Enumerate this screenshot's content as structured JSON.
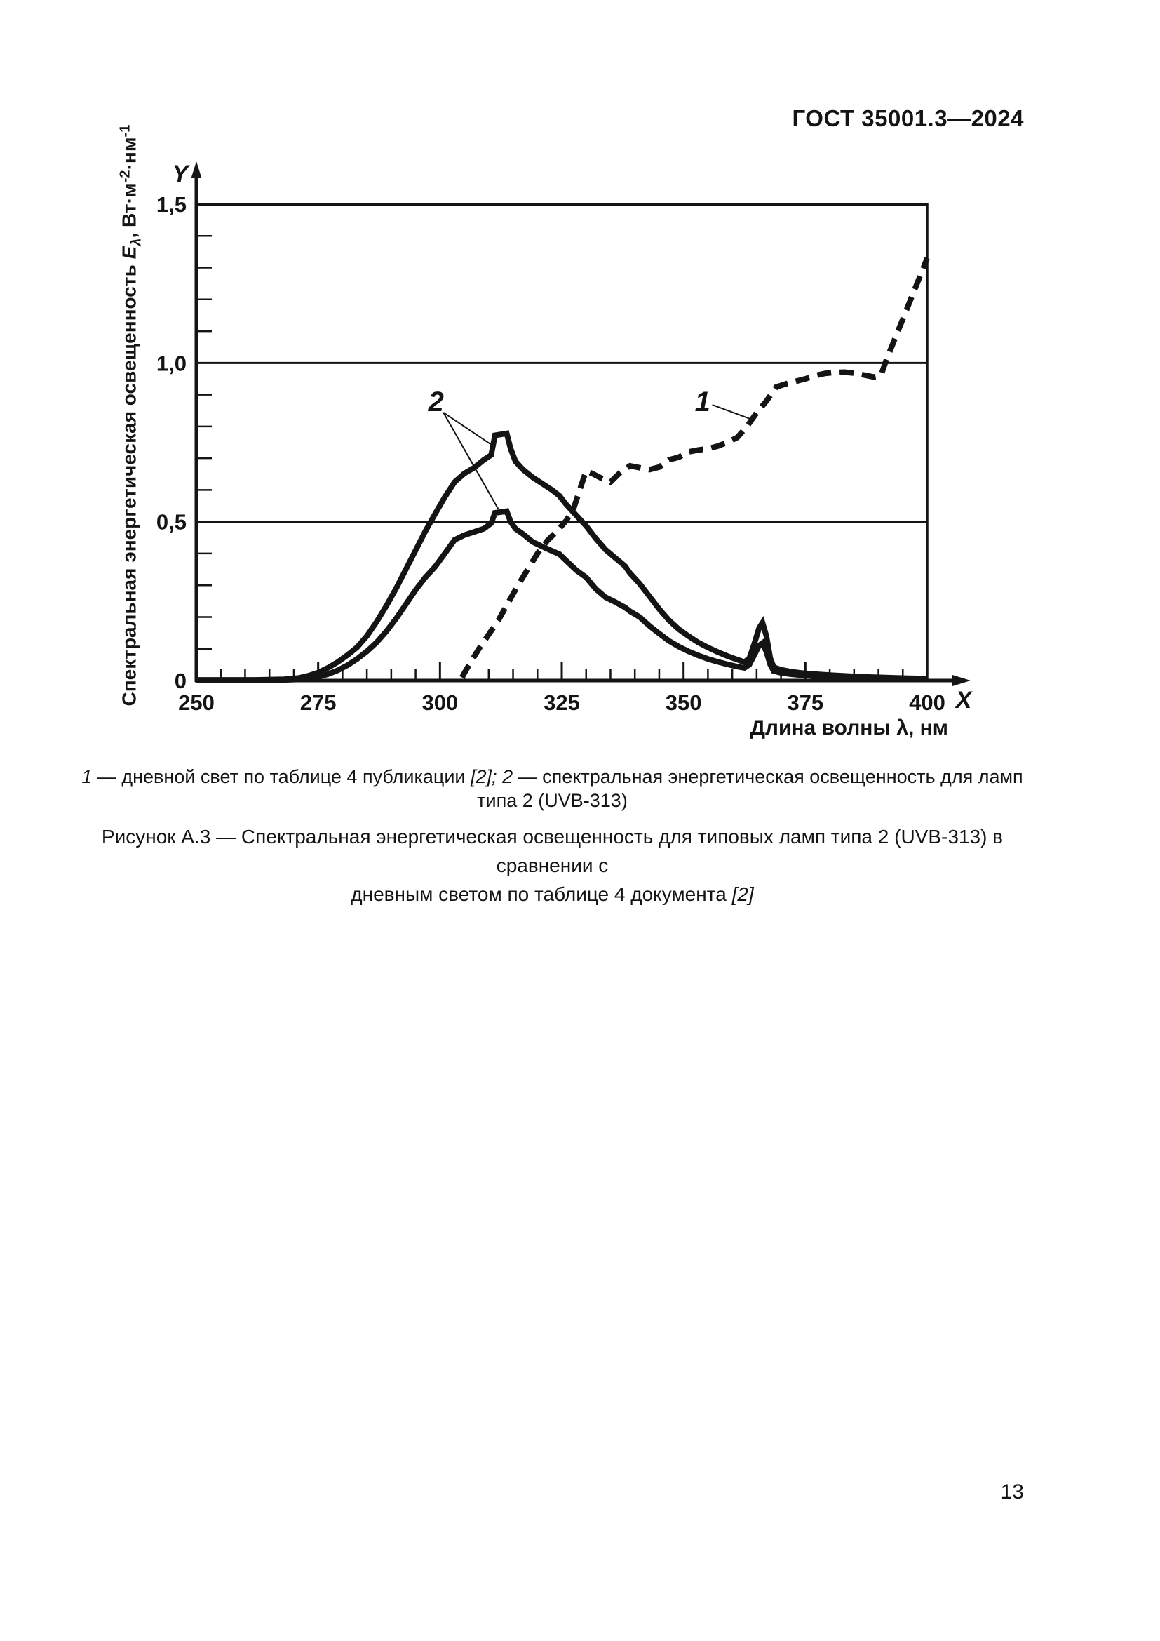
{
  "page": {
    "header": "ГОСТ 35001.3—2024",
    "page_number": "13"
  },
  "y_axis_label_parts": [
    {
      "text": "Спектральная энергетическая освещенность "
    },
    {
      "text": "E",
      "italic": true
    },
    {
      "text": "λ",
      "italic": true,
      "sub": true
    },
    {
      "text": ", Вт·м"
    },
    {
      "text": "-2",
      "sup": true
    },
    {
      "text": "·нм"
    },
    {
      "text": "-1",
      "sup": true
    }
  ],
  "legend_parts": [
    {
      "text": "1",
      "italic": true
    },
    {
      "text": " — дневной свет по таблице 4 публикации "
    },
    {
      "text": "[2];",
      "italic": true
    },
    {
      "text": " "
    },
    {
      "text": "2",
      "italic": true
    },
    {
      "text": " — спектральная энергетическая освещенность для ламп типа 2 (UVB-313)"
    }
  ],
  "figure_title": {
    "line1_parts": [
      {
        "text": "Рисунок А.3 — Спектральная энергетическая освещенность для типовых ламп типа 2 (UVB-313) в сравнении с"
      }
    ],
    "line2_parts": [
      {
        "text": "дневным светом по таблице 4 документа "
      },
      {
        "text": "[2]",
        "italic": true
      }
    ]
  },
  "chart_data": {
    "type": "line",
    "title": "",
    "xlabel": "Длина волны λ, нм",
    "ylabel": "Спектральная энергетическая освещенность Eλ, Вт·м⁻²·нм⁻¹",
    "axis_letter_x": "X",
    "axis_letter_y": "Y",
    "xlim": [
      250,
      400
    ],
    "ylim": [
      0,
      1.5
    ],
    "x_major_ticks": [
      250,
      275,
      300,
      325,
      350,
      375,
      400
    ],
    "x_major_tick_labels": [
      "250",
      "275",
      "300",
      "325",
      "350",
      "375",
      "400"
    ],
    "x_minor_tick_step": 5,
    "y_major_ticks": [
      0,
      0.5,
      1.0,
      1.5
    ],
    "y_major_tick_labels": [
      "0",
      "0,5",
      "1,0",
      "1,5"
    ],
    "y_minor_tick_step": 0.1,
    "y_gridlines": [
      0.5,
      1.0
    ],
    "grid": "horizontal-only",
    "legend_position": "below-as-caption",
    "line_color": "#141414",
    "series": [
      {
        "id": "curve-1-daylight",
        "name": "1 — дневной свет по таблице 4 публикации [2]",
        "style": "dashed",
        "points": [
          [
            304.5,
            0.01
          ],
          [
            306,
            0.05
          ],
          [
            308,
            0.1
          ],
          [
            310,
            0.145
          ],
          [
            312,
            0.19
          ],
          [
            314,
            0.245
          ],
          [
            316,
            0.3
          ],
          [
            318,
            0.35
          ],
          [
            320,
            0.4
          ],
          [
            322,
            0.44
          ],
          [
            324,
            0.47
          ],
          [
            326,
            0.505
          ],
          [
            327.5,
            0.545
          ],
          [
            329,
            0.615
          ],
          [
            330,
            0.66
          ],
          [
            331.5,
            0.65
          ],
          [
            333,
            0.638
          ],
          [
            335,
            0.625
          ],
          [
            337,
            0.655
          ],
          [
            339,
            0.676
          ],
          [
            341,
            0.67
          ],
          [
            343,
            0.664
          ],
          [
            345,
            0.672
          ],
          [
            347,
            0.695
          ],
          [
            349,
            0.703
          ],
          [
            351,
            0.72
          ],
          [
            353,
            0.726
          ],
          [
            355,
            0.73
          ],
          [
            357,
            0.738
          ],
          [
            359,
            0.75
          ],
          [
            361,
            0.765
          ],
          [
            363,
            0.8
          ],
          [
            365,
            0.843
          ],
          [
            367,
            0.88
          ],
          [
            369,
            0.924
          ],
          [
            371,
            0.934
          ],
          [
            373,
            0.942
          ],
          [
            375,
            0.95
          ],
          [
            377,
            0.96
          ],
          [
            379,
            0.967
          ],
          [
            381,
            0.97
          ],
          [
            383,
            0.971
          ],
          [
            385,
            0.968
          ],
          [
            387,
            0.962
          ],
          [
            389,
            0.956
          ],
          [
            390.5,
            0.96
          ],
          [
            391.5,
            1.005
          ],
          [
            393,
            1.062
          ],
          [
            395,
            1.138
          ],
          [
            397,
            1.215
          ],
          [
            399,
            1.291
          ],
          [
            400,
            1.33
          ]
        ]
      },
      {
        "id": "curve-2-upper",
        "name": "2 — спектральная энергетическая освещенность для ламп типа 2 (UVB-313), верхняя кривая",
        "style": "solid",
        "points": [
          [
            250,
            0.002
          ],
          [
            262,
            0.002
          ],
          [
            268,
            0.004
          ],
          [
            271,
            0.008
          ],
          [
            273,
            0.015
          ],
          [
            275,
            0.025
          ],
          [
            277,
            0.04
          ],
          [
            279,
            0.058
          ],
          [
            281,
            0.08
          ],
          [
            283,
            0.105
          ],
          [
            285,
            0.14
          ],
          [
            287,
            0.185
          ],
          [
            289,
            0.235
          ],
          [
            291,
            0.29
          ],
          [
            293,
            0.35
          ],
          [
            295,
            0.41
          ],
          [
            297,
            0.47
          ],
          [
            299,
            0.525
          ],
          [
            301,
            0.578
          ],
          [
            303,
            0.625
          ],
          [
            305,
            0.652
          ],
          [
            307,
            0.67
          ],
          [
            309,
            0.695
          ],
          [
            310.5,
            0.71
          ],
          [
            311.3,
            0.772
          ],
          [
            313.7,
            0.778
          ],
          [
            314.5,
            0.73
          ],
          [
            315.5,
            0.69
          ],
          [
            317,
            0.665
          ],
          [
            319,
            0.64
          ],
          [
            321,
            0.62
          ],
          [
            323,
            0.6
          ],
          [
            324.5,
            0.582
          ],
          [
            326,
            0.553
          ],
          [
            328,
            0.52
          ],
          [
            330,
            0.487
          ],
          [
            332,
            0.447
          ],
          [
            334,
            0.412
          ],
          [
            336,
            0.386
          ],
          [
            338,
            0.36
          ],
          [
            339,
            0.338
          ],
          [
            341,
            0.305
          ],
          [
            343,
            0.265
          ],
          [
            345,
            0.225
          ],
          [
            347,
            0.19
          ],
          [
            349,
            0.162
          ],
          [
            351,
            0.14
          ],
          [
            353,
            0.12
          ],
          [
            355,
            0.104
          ],
          [
            357,
            0.09
          ],
          [
            359,
            0.077
          ],
          [
            361,
            0.066
          ],
          [
            362.5,
            0.058
          ],
          [
            363.5,
            0.07
          ],
          [
            364.5,
            0.115
          ],
          [
            365.5,
            0.165
          ],
          [
            366.2,
            0.182
          ],
          [
            367,
            0.14
          ],
          [
            367.8,
            0.07
          ],
          [
            368.5,
            0.042
          ],
          [
            370,
            0.034
          ],
          [
            372,
            0.028
          ],
          [
            374,
            0.024
          ],
          [
            377,
            0.02
          ],
          [
            380,
            0.017
          ],
          [
            384,
            0.014
          ],
          [
            388,
            0.011
          ],
          [
            392,
            0.009
          ],
          [
            396,
            0.007
          ],
          [
            400,
            0.006
          ]
        ]
      },
      {
        "id": "curve-2-lower",
        "name": "2 — спектральная энергетическая освещенность для ламп типа 2 (UVB-313), нижняя кривая",
        "style": "solid",
        "points": [
          [
            250,
            0.001
          ],
          [
            266,
            0.001
          ],
          [
            270,
            0.003
          ],
          [
            273,
            0.007
          ],
          [
            275,
            0.012
          ],
          [
            277,
            0.02
          ],
          [
            279,
            0.032
          ],
          [
            281,
            0.048
          ],
          [
            283,
            0.068
          ],
          [
            285,
            0.092
          ],
          [
            287,
            0.12
          ],
          [
            289,
            0.155
          ],
          [
            291,
            0.195
          ],
          [
            293,
            0.24
          ],
          [
            295,
            0.285
          ],
          [
            297,
            0.325
          ],
          [
            299,
            0.358
          ],
          [
            301,
            0.4
          ],
          [
            303,
            0.443
          ],
          [
            305,
            0.458
          ],
          [
            307,
            0.468
          ],
          [
            309,
            0.478
          ],
          [
            310.5,
            0.495
          ],
          [
            311.3,
            0.528
          ],
          [
            313.7,
            0.533
          ],
          [
            314.5,
            0.5
          ],
          [
            315.5,
            0.478
          ],
          [
            317,
            0.462
          ],
          [
            319,
            0.437
          ],
          [
            321,
            0.422
          ],
          [
            323,
            0.408
          ],
          [
            324.5,
            0.398
          ],
          [
            326,
            0.376
          ],
          [
            328,
            0.347
          ],
          [
            330,
            0.325
          ],
          [
            332,
            0.288
          ],
          [
            334,
            0.262
          ],
          [
            336,
            0.247
          ],
          [
            338,
            0.23
          ],
          [
            339,
            0.218
          ],
          [
            341,
            0.2
          ],
          [
            343,
            0.172
          ],
          [
            345,
            0.148
          ],
          [
            347,
            0.125
          ],
          [
            349,
            0.107
          ],
          [
            351,
            0.092
          ],
          [
            353,
            0.079
          ],
          [
            355,
            0.068
          ],
          [
            357,
            0.059
          ],
          [
            359,
            0.051
          ],
          [
            361,
            0.044
          ],
          [
            362.5,
            0.04
          ],
          [
            363.5,
            0.05
          ],
          [
            364.5,
            0.08
          ],
          [
            365.5,
            0.11
          ],
          [
            366.2,
            0.118
          ],
          [
            367,
            0.09
          ],
          [
            367.8,
            0.05
          ],
          [
            368.5,
            0.03
          ],
          [
            370,
            0.024
          ],
          [
            372,
            0.02
          ],
          [
            374,
            0.017
          ],
          [
            377,
            0.014
          ],
          [
            380,
            0.012
          ],
          [
            384,
            0.01
          ],
          [
            388,
            0.008
          ],
          [
            392,
            0.006
          ],
          [
            396,
            0.005
          ],
          [
            400,
            0.004
          ]
        ]
      }
    ],
    "annotations": [
      {
        "label": "2",
        "label_x": 299.2,
        "label_y": 0.848,
        "leaders": [
          [
            [
              300.7,
              0.844
            ],
            [
              310.4,
              0.744
            ]
          ],
          [
            [
              300.7,
              0.844
            ],
            [
              312.0,
              0.539
            ]
          ]
        ]
      },
      {
        "label": "1",
        "label_x": 353.9,
        "label_y": 0.848,
        "leaders": [
          [
            [
              355.9,
              0.868
            ],
            [
              363.7,
              0.824
            ]
          ]
        ]
      }
    ]
  }
}
